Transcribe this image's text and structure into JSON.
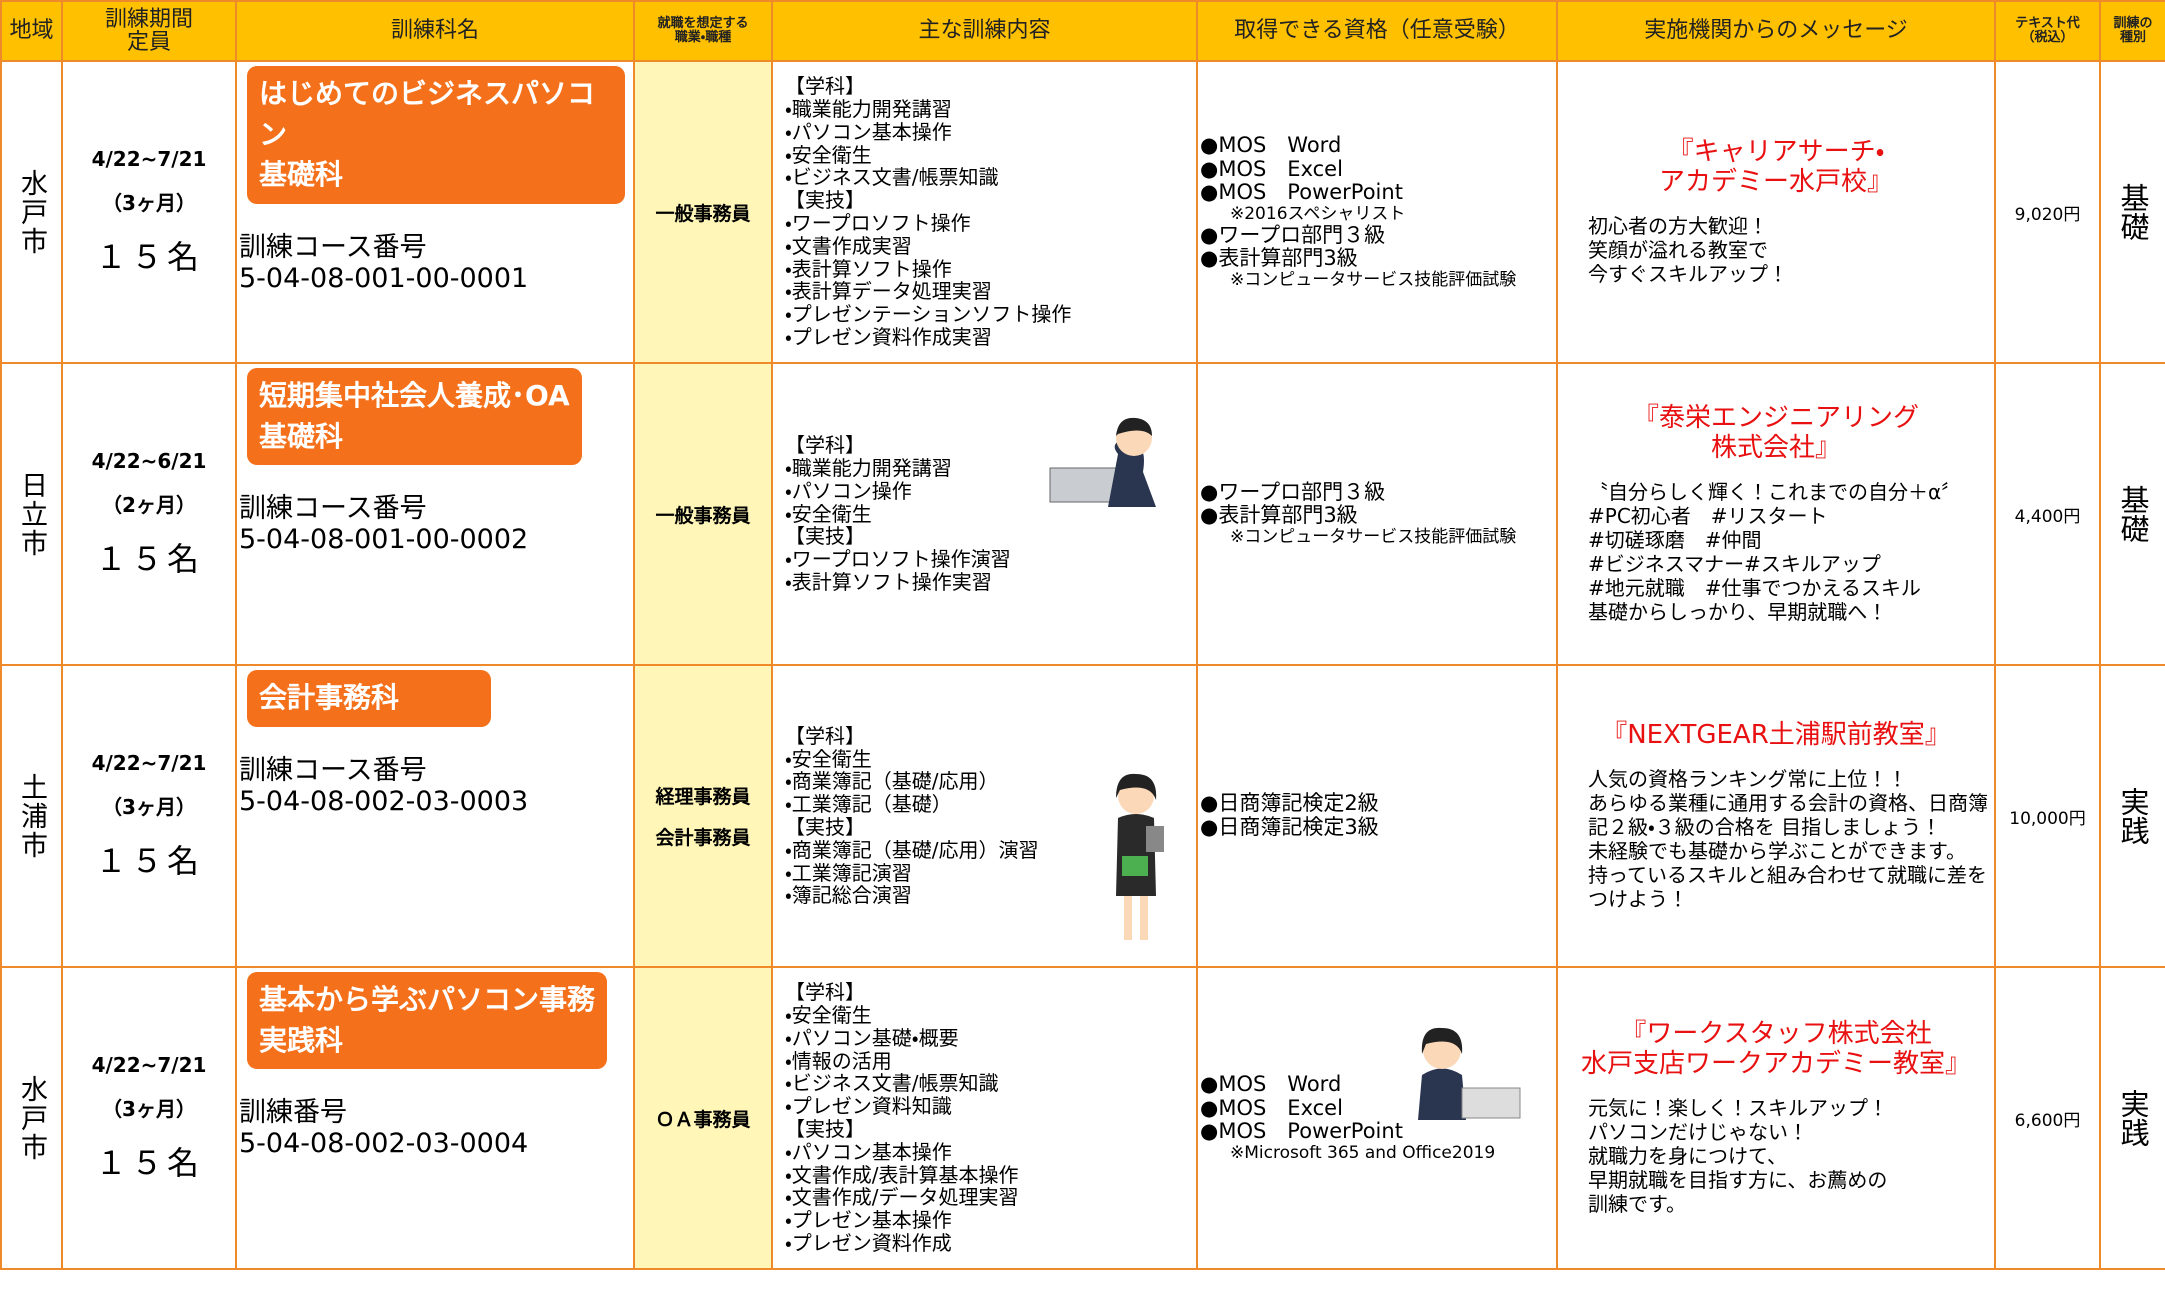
{
  "header": {
    "cells": [
      [
        "地域"
      ],
      [
        "訓練期間",
        "定員"
      ],
      [
        "訓練科名"
      ],
      [
        "就職を想定する",
        "職業・職種"
      ],
      [
        "主な訓練内容"
      ],
      [
        "取得できる資格（任意受験）"
      ],
      [
        "実施機関からのメッセージ"
      ],
      [
        "テキスト代",
        "（税込）"
      ],
      [
        "訓練の",
        "種別"
      ]
    ]
  },
  "rows": [
    {
      "region": "水戸市",
      "period": "4/22~7/21",
      "duration": "（3ヶ月）",
      "capacity": "１５名",
      "course_name": [
        "はじめてのビジネスパソコン",
        "基礎科"
      ],
      "code_label": "訓練コース番号",
      "code": "5-04-08-001-00-0001",
      "jobs": [
        "一般事務員"
      ],
      "contents": [
        "【学科】",
        "・職業能力開発講習",
        "・パソコン基本操作",
        "・安全衛生",
        "・ビジネス文書/帳票知識",
        "【実技】",
        "・ワープロソフト操作",
        "・文書作成実習",
        "・表計算ソフト操作",
        "・表計算データ処理実習",
        "・プレゼンテーションソフト操作",
        "・プレゼン資料作成実習"
      ],
      "qualifications": [
        "●MOS　Word",
        "●MOS　Excel",
        "●MOS　PowerPoint",
        "※2016スペシャリスト",
        "●ワープロ部門３級",
        "●表計算部門3級",
        "※コンピュータサービス技能評価試験"
      ],
      "message_title": [
        "『キャリアサーチ・",
        "アカデミー水戸校』"
      ],
      "message": [
        "初心者の方大歓迎！",
        "笑顔が溢れる教室で",
        "今すぐスキルアップ！"
      ],
      "fee": "9,020円",
      "kind": "基礎"
    },
    {
      "region": "日立市",
      "period": "4/22~6/21",
      "duration": "（2ヶ月）",
      "capacity": "１５名",
      "course_name": [
        "短期集中社会人養成･OA",
        "基礎科"
      ],
      "code_label": "訓練コース番号",
      "code": "5-04-08-001-00-0002",
      "jobs": [
        "一般事務員"
      ],
      "contents": [
        "【学科】",
        "・職業能力開発講習",
        "・パソコン操作",
        "・安全衛生",
        "【実技】",
        "・ワープロソフト操作演習",
        "・表計算ソフト操作実習"
      ],
      "qualifications": [
        "●ワープロ部門３級",
        "●表計算部門3級",
        "※コンピュータサービス技能評価試験"
      ],
      "message_title": [
        "『泰栄エンジニアリング",
        "株式会社』"
      ],
      "message": [
        "〝自分らしく輝く！これまでの自分＋α〞",
        "#PC初心者　#リスタート",
        "#切磋琢磨　#仲間",
        "#ビジネスマナー#スキルアップ",
        "#地元就職　#仕事でつかえるスキル",
        "基礎からしっかり、早期就職へ！"
      ],
      "fee": "4,400円",
      "kind": "基礎"
    },
    {
      "region": "土浦市",
      "period": "4/22~7/21",
      "duration": "（3ヶ月）",
      "capacity": "１５名",
      "course_name": [
        "会計事務科"
      ],
      "code_label": "訓練コース番号",
      "code": "5-04-08-002-03-0003",
      "jobs": [
        "経理事務員",
        "会計事務員"
      ],
      "contents": [
        "【学科】",
        "・安全衛生",
        "・商業簿記（基礎/応用）",
        "・工業簿記（基礎）",
        "【実技】",
        "・商業簿記（基礎/応用）演習",
        "・工業簿記演習",
        "・簿記総合演習"
      ],
      "qualifications": [
        "●日商簿記検定2級",
        "●日商簿記検定3級"
      ],
      "message_title": [
        "『NEXTGEAR土浦駅前教室』"
      ],
      "message": [
        "人気の資格ランキング常に上位！！",
        "あらゆる業種に通用する会計の資格、日商簿記２級・３級の合格を 目指しましょう！",
        "未経験でも基礎から学ぶことができます。",
        "持っているスキルと組み合わせて就職に差をつけよう！"
      ],
      "fee": "10,000円",
      "kind": "実践"
    },
    {
      "region": "水戸市",
      "period": "4/22~7/21",
      "duration": "（3ヶ月）",
      "capacity": "１５名",
      "course_name": [
        "基本から学ぶパソコン事務",
        "実践科"
      ],
      "code_label": "訓練番号",
      "code": "5-04-08-002-03-0004",
      "jobs": [
        "ＯＡ事務員"
      ],
      "contents": [
        "【学科】",
        "・安全衛生",
        "・パソコン基礎・概要",
        "・情報の活用",
        "・ビジネス文書/帳票知識",
        "・プレゼン資料知識",
        "【実技】",
        "・パソコン基本操作",
        "・文書作成/表計算基本操作",
        "・文書作成/データ処理実習",
        "・プレゼン基本操作",
        "・プレゼン資料作成"
      ],
      "qualifications": [
        "●MOS　Word",
        "●MOS　Excel",
        "●MOS　PowerPoint",
        "※Microsoft 365 and Office2019"
      ],
      "message_title": [
        "『ワークスタッフ株式会社",
        "水戸支店ワークアカデミー教室』"
      ],
      "message": [
        "元気に！楽しく！スキルアップ！",
        "パソコンだけじゃない！",
        "就職力を身につけて、",
        "早期就職を目指す方に、お薦めの",
        "訓練です。"
      ],
      "fee": "6,600円",
      "kind": "実践"
    }
  ]
}
